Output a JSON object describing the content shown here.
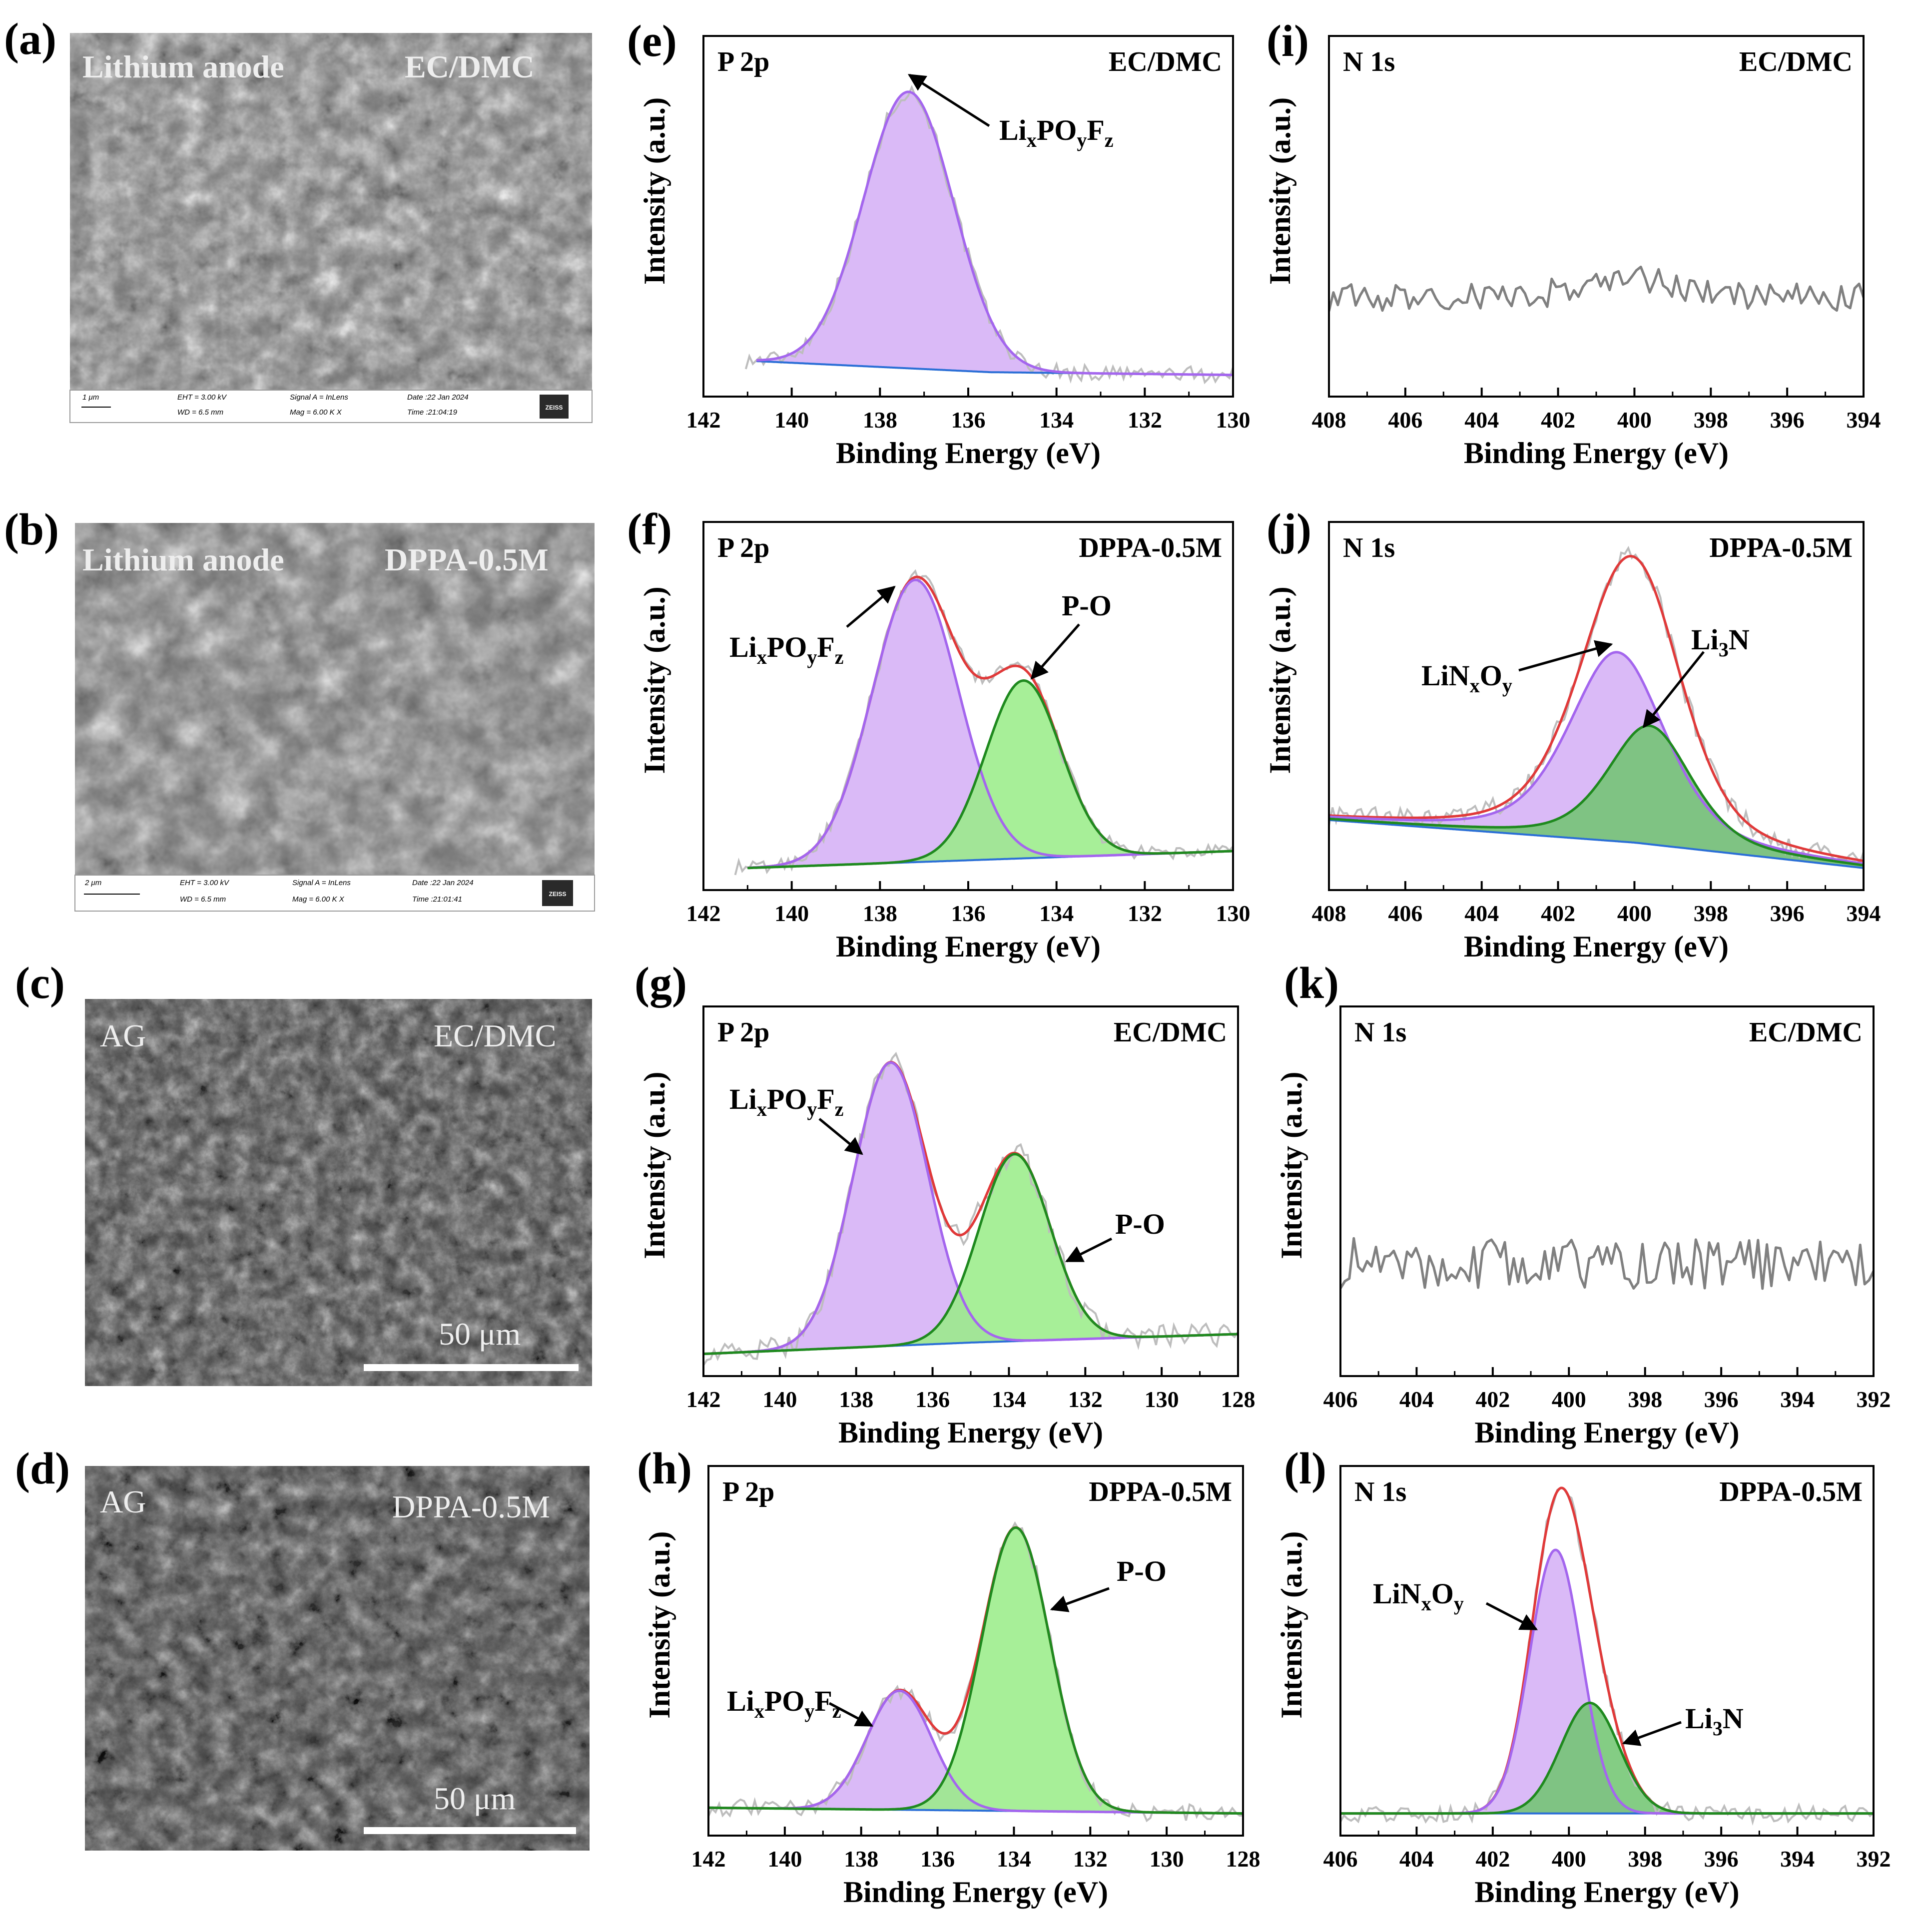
{
  "colors": {
    "lixpoyfz_fill": "#d4aef6",
    "lixpoyfz_line": "#a466ee",
    "po_fill": "#98ec86",
    "po_line": "#1f8a1f",
    "li3n_fill": "#6fc46f",
    "envelope": "#e03a3a",
    "background_line": "#2b6fd6",
    "raw_data": "#bdbdbd",
    "noisy_data": "#808080"
  },
  "sem_images": [
    {
      "panel": "(a)",
      "left_text": "Lithium anode",
      "right_text": "EC/DMC",
      "info": {
        "scale": "1 μm",
        "eht": "EHT = 3.00 kV",
        "wd": "WD = 6.5 mm",
        "signal": "Signal A = InLens",
        "mag": "Mag = 6.00 K X",
        "date": "Date :22 Jan 2024",
        "time": "Time :21:04:19",
        "brand": "ZEISS"
      }
    },
    {
      "panel": "(b)",
      "left_text": "Lithium anode",
      "right_text": "DPPA-0.5M",
      "info": {
        "scale": "2 μm",
        "eht": "EHT = 3.00 kV",
        "wd": "WD = 6.5 mm",
        "signal": "Signal A = InLens",
        "mag": "Mag = 6.00 K X",
        "date": "Date :22 Jan 2024",
        "time": "Time :21:01:41",
        "brand": "ZEISS"
      }
    },
    {
      "panel": "(c)",
      "left_text": "AG",
      "right_text": "EC/DMC",
      "scale_text": "50 μm"
    },
    {
      "panel": "(d)",
      "left_text": "AG",
      "right_text": "DPPA-0.5M",
      "scale_text": "50 μm"
    }
  ],
  "chart_data": [
    {
      "panel": "(e)",
      "type": "line",
      "title": "P 2p",
      "condition": "EC/DMC",
      "xlabel": "Binding Energy (eV)",
      "ylabel": "Intensity (a.u.)",
      "xlim": [
        142,
        130
      ],
      "xticks": [
        142,
        140,
        138,
        136,
        134,
        132,
        130
      ],
      "ylim": [
        0,
        1.2
      ],
      "background": {
        "from": [
          140.8,
          0.05
        ],
        "mid": [
          135.5,
          0.01
        ],
        "to": [
          130,
          0.0
        ]
      },
      "peaks": [
        {
          "name": "LixPOyFz",
          "center": 137.35,
          "height": 1.0,
          "fwhm": 2.4,
          "color": "lixpoyfz"
        }
      ],
      "envelope": false,
      "raw_noise": 0.03,
      "annotations": [
        {
          "label": "Li_{x}PO_{y}F_{z}",
          "arrow_to_x": 137.2
        }
      ]
    },
    {
      "panel": "(f)",
      "type": "line",
      "title": "P 2p",
      "condition": "DPPA-0.5M",
      "xlabel": "Binding Energy (eV)",
      "ylabel": "Intensity (a.u.)",
      "xlim": [
        142,
        130
      ],
      "xticks": [
        142,
        140,
        138,
        136,
        134,
        132,
        130
      ],
      "ylim": [
        0,
        1.2
      ],
      "background": {
        "from": [
          141,
          0.0
        ],
        "mid": [
          135.5,
          0.03
        ],
        "to": [
          130,
          0.06
        ]
      },
      "peaks": [
        {
          "name": "LixPOyFz",
          "center": 137.2,
          "height": 1.0,
          "fwhm": 2.3,
          "color": "lixpoyfz"
        },
        {
          "name": "P-O",
          "center": 134.75,
          "height": 0.63,
          "fwhm": 2.0,
          "color": "po"
        }
      ],
      "envelope": true,
      "raw_noise": 0.025,
      "annotations": [
        {
          "label": "Li_{x}PO_{y}F_{z}",
          "arrow_to_x": 137.4
        },
        {
          "label": "P-O",
          "arrow_to_x": 134.8
        }
      ]
    },
    {
      "panel": "(g)",
      "type": "line",
      "title": "P 2p",
      "condition": "EC/DMC",
      "xlabel": "Binding Energy (eV)",
      "ylabel": "Intensity (a.u.)",
      "xlim": [
        142,
        128
      ],
      "xticks": [
        142,
        140,
        138,
        136,
        134,
        132,
        130,
        128
      ],
      "ylim": [
        0,
        1.2
      ],
      "background": {
        "from": [
          142,
          0.0
        ],
        "mid": [
          135,
          0.04
        ],
        "to": [
          128,
          0.07
        ]
      },
      "peaks": [
        {
          "name": "LixPOyFz",
          "center": 137.1,
          "height": 1.0,
          "fwhm": 2.3,
          "color": "lixpoyfz"
        },
        {
          "name": "P-O",
          "center": 133.85,
          "height": 0.66,
          "fwhm": 2.2,
          "color": "po"
        }
      ],
      "envelope": true,
      "raw_noise": 0.04,
      "annotations": [
        {
          "label": "Li_{x}PO_{y}F_{z}",
          "arrow_to_x": 137.9
        },
        {
          "label": "P-O",
          "arrow_to_x": 133.4
        }
      ]
    },
    {
      "panel": "(h)",
      "type": "line",
      "title": "P 2p",
      "condition": "DPPA-0.5M",
      "xlabel": "Binding Energy (eV)",
      "ylabel": "Intensity (a.u.)",
      "xlim": [
        142,
        128
      ],
      "xticks": [
        142,
        140,
        138,
        136,
        134,
        132,
        130,
        128
      ],
      "ylim": [
        0,
        1.2
      ],
      "background": {
        "from": [
          142,
          0.02
        ],
        "mid": [
          135,
          0.01
        ],
        "to": [
          128,
          0.0
        ]
      },
      "peaks": [
        {
          "name": "LixPOyFz",
          "center": 137.0,
          "height": 0.42,
          "fwhm": 2.0,
          "color": "lixpoyfz"
        },
        {
          "name": "P-O",
          "center": 133.95,
          "height": 1.0,
          "fwhm": 2.1,
          "color": "po"
        }
      ],
      "envelope": true,
      "raw_noise": 0.03,
      "annotations": [
        {
          "label": "Li_{x}PO_{y}F_{z}",
          "arrow_to_x": 137.4
        },
        {
          "label": "P-O",
          "arrow_to_x": 133.3
        }
      ]
    },
    {
      "panel": "(i)",
      "type": "line",
      "title": "N 1s",
      "condition": "EC/DMC",
      "xlabel": "Binding Energy (eV)",
      "ylabel": "Intensity (a.u.)",
      "xlim": [
        408,
        394
      ],
      "xticks": [
        408,
        406,
        404,
        402,
        400,
        398,
        396,
        394
      ],
      "ylim": [
        0,
        1.2
      ],
      "noisy_only": true,
      "noise_base": 0.28,
      "noise_amp": 0.05,
      "bump": {
        "center": 400.2,
        "height": 0.07,
        "width": 1.2
      }
    },
    {
      "panel": "(j)",
      "type": "line",
      "title": "N 1s",
      "condition": "DPPA-0.5M",
      "xlabel": "Binding Energy (eV)",
      "ylabel": "Intensity (a.u.)",
      "xlim": [
        408,
        394
      ],
      "xticks": [
        408,
        406,
        404,
        402,
        400,
        398,
        396,
        394
      ],
      "ylim": [
        0,
        1.2
      ],
      "background": {
        "from": [
          408,
          0.17
        ],
        "mid": [
          400,
          0.09
        ],
        "to": [
          394,
          0.0
        ]
      },
      "peaks": [
        {
          "name": "LiNxOy",
          "center": 400.45,
          "height": 0.67,
          "fwhm": 3.0,
          "color": "lixpoyfz",
          "lorentz": true
        },
        {
          "name": "Li3N",
          "center": 399.6,
          "height": 0.42,
          "fwhm": 2.6,
          "color": "li3n",
          "lorentz": true
        }
      ],
      "envelope": true,
      "raw_noise": 0.035,
      "annotations": [
        {
          "label": "LiN_{x}O_{y}",
          "arrow_to_x": 400.6
        },
        {
          "label": "Li_{3}N",
          "arrow_to_x": 399.4
        }
      ]
    },
    {
      "panel": "(k)",
      "type": "line",
      "title": "N 1s",
      "condition": "EC/DMC",
      "xlabel": "Binding Energy (eV)",
      "ylabel": "Intensity (a.u.)",
      "xlim": [
        406,
        392
      ],
      "xticks": [
        406,
        404,
        402,
        400,
        398,
        396,
        394,
        392
      ],
      "ylim": [
        0,
        1.2
      ],
      "noisy_only": true,
      "noise_base": 0.32,
      "noise_amp": 0.09
    },
    {
      "panel": "(l)",
      "type": "line",
      "title": "N 1s",
      "condition": "DPPA-0.5M",
      "xlabel": "Binding Energy (eV)",
      "ylabel": "Intensity (a.u.)",
      "xlim": [
        406,
        392
      ],
      "xticks": [
        406,
        404,
        402,
        400,
        398,
        396,
        394,
        392
      ],
      "ylim": [
        0,
        1.2
      ],
      "background": {
        "from": [
          406,
          0.0
        ],
        "mid": [
          399,
          0.0
        ],
        "to": [
          392,
          0.0
        ]
      },
      "peaks": [
        {
          "name": "LiNxOy",
          "center": 400.35,
          "height": 0.93,
          "fwhm": 1.6,
          "color": "lixpoyfz"
        },
        {
          "name": "Li3N",
          "center": 399.45,
          "height": 0.39,
          "fwhm": 1.8,
          "color": "li3n"
        }
      ],
      "envelope": true,
      "raw_noise": 0.03,
      "annotations": [
        {
          "label": "LiN_{x}O_{y}",
          "arrow_to_x": 400.6
        },
        {
          "label": "Li_{3}N",
          "arrow_to_x": 398.7
        }
      ]
    }
  ]
}
